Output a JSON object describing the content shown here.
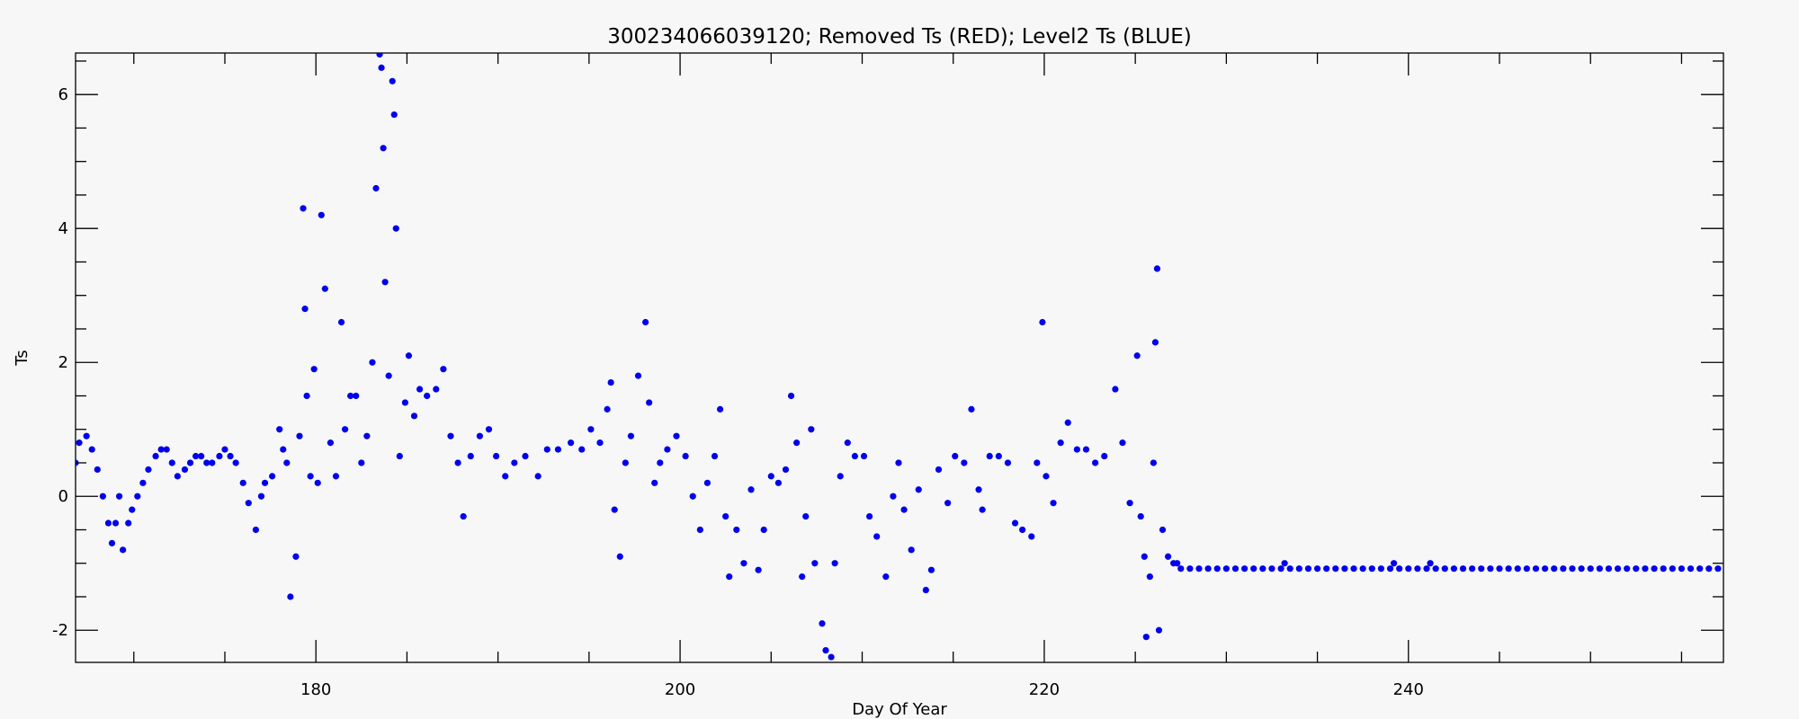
{
  "chart_data": {
    "type": "scatter",
    "title": "300234066039120; Removed Ts (RED); Level2 Ts (BLUE)",
    "xlabel": "Day Of Year",
    "ylabel": "Ts",
    "xlim": [
      166.8,
      257.3
    ],
    "ylim": [
      -2.48,
      6.62
    ],
    "xticks": [
      180,
      200,
      220,
      240
    ],
    "yticks": [
      -2,
      0,
      2,
      4,
      6
    ],
    "xminorticks": [
      170,
      175,
      185,
      190,
      195,
      205,
      210,
      215,
      225,
      230,
      235,
      245,
      250,
      255
    ],
    "yminorticks": [
      -1.5,
      -1,
      -0.5,
      0.5,
      1,
      1.5,
      2.5,
      3,
      3.5,
      4.5,
      5,
      5.5,
      6.5
    ],
    "grid": false,
    "series": [
      {
        "color": "#0000ee",
        "x": [
          166.8,
          167.0,
          167.4,
          167.7,
          168.0,
          168.3,
          168.6,
          168.8,
          169.0,
          169.2,
          169.4,
          169.7,
          169.9,
          170.2,
          170.5,
          170.8,
          171.2,
          171.5,
          171.8,
          172.1,
          172.4,
          172.8,
          173.1,
          173.4,
          173.7,
          174.0,
          174.3,
          174.7,
          175.0,
          175.3,
          175.6,
          176.0,
          176.3,
          176.7,
          177.0,
          177.2,
          177.6,
          178.0,
          178.2,
          178.4,
          178.6,
          178.9,
          179.1,
          179.3,
          179.4,
          179.5,
          179.7,
          179.9,
          180.1,
          180.3,
          180.5,
          180.8,
          181.1,
          181.4,
          181.6,
          181.9,
          182.2,
          182.5,
          182.8,
          183.1,
          183.3,
          183.5,
          183.6,
          183.7,
          183.8,
          184.0,
          184.2,
          184.3,
          184.4,
          184.6,
          184.9,
          185.1,
          185.4,
          185.7,
          186.1,
          186.6,
          187.0,
          187.4,
          187.8,
          188.1,
          188.5,
          189.0,
          189.5,
          189.9,
          190.4,
          190.9,
          191.5,
          192.2,
          192.7,
          193.3,
          194.0,
          194.6,
          195.1,
          195.6,
          196.0,
          196.2,
          196.4,
          196.7,
          197.0,
          197.3,
          197.7,
          198.1,
          198.3,
          198.6,
          198.9,
          199.3,
          199.8,
          200.3,
          200.7,
          201.1,
          201.5,
          201.9,
          202.2,
          202.5,
          202.7,
          203.1,
          203.5,
          203.9,
          204.3,
          204.6,
          205.0,
          205.4,
          205.8,
          206.1,
          206.4,
          206.7,
          206.9,
          207.2,
          207.4,
          207.8,
          208.0,
          208.3,
          208.5,
          208.8,
          209.2,
          209.6,
          210.1,
          210.4,
          210.8,
          211.3,
          211.7,
          212.0,
          212.3,
          212.7,
          213.1,
          213.5,
          213.8,
          214.2,
          214.7,
          215.1,
          215.6,
          216.0,
          216.4,
          216.6,
          217.0,
          217.5,
          218.0,
          218.4,
          218.8,
          219.3,
          219.6,
          219.9,
          220.1,
          220.5,
          220.9,
          221.3,
          221.8,
          222.3,
          222.8,
          223.3,
          223.9,
          224.3,
          224.7,
          225.1,
          225.3,
          225.5,
          225.6,
          225.8,
          226.0,
          226.1,
          226.2,
          226.3,
          226.5,
          226.8,
          227.1,
          227.3,
          227.5,
          228.0,
          228.5,
          229.0,
          229.5,
          230.0,
          230.5,
          231.0,
          231.5,
          232.0,
          232.5,
          233.0,
          233.2,
          233.5,
          234.0,
          234.5,
          235.0,
          235.5,
          236.0,
          236.5,
          237.0,
          237.5,
          238.0,
          238.5,
          239.0,
          239.2,
          239.5,
          240.0,
          240.5,
          241.0,
          241.2,
          241.5,
          242.0,
          242.5,
          243.0,
          243.5,
          244.0,
          244.5,
          245.0,
          245.5,
          246.0,
          246.5,
          247.0,
          247.5,
          248.0,
          248.5,
          249.0,
          249.5,
          250.0,
          250.5,
          251.0,
          251.5,
          252.0,
          252.5,
          253.0,
          253.5,
          254.0,
          254.5,
          255.0,
          255.5,
          256.0,
          256.5,
          257.0
        ],
        "values": [
          0.5,
          0.8,
          0.9,
          0.7,
          0.4,
          0.0,
          -0.4,
          -0.7,
          -0.4,
          0.0,
          -0.8,
          -0.4,
          -0.2,
          0.0,
          0.2,
          0.4,
          0.6,
          0.7,
          0.7,
          0.5,
          0.3,
          0.4,
          0.5,
          0.6,
          0.6,
          0.5,
          0.5,
          0.6,
          0.7,
          0.6,
          0.5,
          0.2,
          -0.1,
          -0.5,
          0.0,
          0.2,
          0.3,
          1.0,
          0.7,
          0.5,
          -1.5,
          -0.9,
          0.9,
          4.3,
          2.8,
          1.5,
          0.3,
          1.9,
          0.2,
          4.2,
          3.1,
          0.8,
          0.3,
          2.6,
          1.0,
          1.5,
          1.5,
          0.5,
          0.9,
          2.0,
          4.6,
          6.6,
          6.4,
          5.2,
          3.2,
          1.8,
          6.2,
          5.7,
          4.0,
          0.6,
          1.4,
          2.1,
          1.2,
          1.6,
          1.5,
          1.6,
          1.9,
          0.9,
          0.5,
          -0.3,
          0.6,
          0.9,
          1.0,
          0.6,
          0.3,
          0.5,
          0.6,
          0.3,
          0.7,
          0.7,
          0.8,
          0.7,
          1.0,
          0.8,
          1.3,
          1.7,
          -0.2,
          -0.9,
          0.5,
          0.9,
          1.8,
          2.6,
          1.4,
          0.2,
          0.5,
          0.7,
          0.9,
          0.6,
          0.0,
          -0.5,
          0.2,
          0.6,
          1.3,
          -0.3,
          -1.2,
          -0.5,
          -1.0,
          0.1,
          -1.1,
          -0.5,
          0.3,
          0.2,
          0.4,
          1.5,
          0.8,
          -1.2,
          -0.3,
          1.0,
          -1.0,
          -1.9,
          -2.3,
          -2.4,
          -1.0,
          0.3,
          0.8,
          0.6,
          0.6,
          -0.3,
          -0.6,
          -1.2,
          0.0,
          0.5,
          -0.2,
          -0.8,
          0.1,
          -1.4,
          -1.1,
          0.4,
          -0.1,
          0.6,
          0.5,
          1.3,
          0.1,
          -0.2,
          0.6,
          0.6,
          0.5,
          -0.4,
          -0.5,
          -0.6,
          0.5,
          2.6,
          0.3,
          -0.1,
          0.8,
          1.1,
          0.7,
          0.7,
          0.5,
          0.6,
          1.6,
          0.8,
          -0.1,
          2.1,
          -0.3,
          -0.9,
          -2.1,
          -1.2,
          0.5,
          2.3,
          3.4,
          -2.0,
          -0.5,
          -0.9,
          -1.0,
          -1.0,
          -1.08,
          -1.08,
          -1.08,
          -1.08,
          -1.08,
          -1.08,
          -1.08,
          -1.08,
          -1.08,
          -1.08,
          -1.08,
          -1.08,
          -1.0,
          -1.08,
          -1.08,
          -1.08,
          -1.08,
          -1.08,
          -1.08,
          -1.08,
          -1.08,
          -1.08,
          -1.08,
          -1.08,
          -1.08,
          -1.0,
          -1.08,
          -1.08,
          -1.08,
          -1.08,
          -1.0,
          -1.08,
          -1.08,
          -1.08,
          -1.08,
          -1.08,
          -1.08,
          -1.08,
          -1.08,
          -1.08,
          -1.08,
          -1.08,
          -1.08,
          -1.08,
          -1.08,
          -1.08,
          -1.08,
          -1.08,
          -1.08,
          -1.08,
          -1.08,
          -1.08,
          -1.08,
          -1.08,
          -1.08,
          -1.08,
          -1.08,
          -1.08,
          -1.08,
          -1.08,
          -1.08,
          -1.08,
          -1.08
        ]
      }
    ]
  }
}
